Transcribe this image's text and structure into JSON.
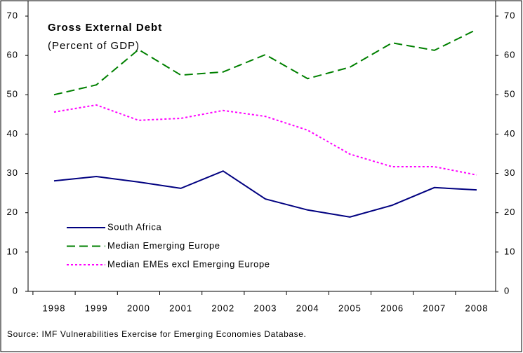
{
  "chart_data": {
    "type": "line",
    "title": "Gross External Debt",
    "subtitle": "(Percent of GDP)",
    "source": "Source: IMF Vulnerabilities Exercise for Emerging Economies Database.",
    "categories": [
      "1998",
      "1999",
      "2000",
      "2001",
      "2002",
      "2003",
      "2004",
      "2005",
      "2006",
      "2007",
      "2008"
    ],
    "series": [
      {
        "name": "South Africa",
        "color": "#000080",
        "dash": "solid",
        "values": [
          28.1,
          29.2,
          27.8,
          26.2,
          30.6,
          23.5,
          20.7,
          18.9,
          21.9,
          26.4,
          25.8
        ]
      },
      {
        "name": "Median Emerging Europe",
        "color": "#008000",
        "dash": "dashed",
        "values": [
          50.0,
          52.5,
          61.5,
          55.0,
          55.8,
          60.2,
          54.1,
          57.0,
          63.2,
          61.3,
          66.6
        ]
      },
      {
        "name": "Median EMEs excl Emerging Europe",
        "color": "#ff00ff",
        "dash": "dotted",
        "values": [
          45.6,
          47.4,
          43.5,
          44.0,
          46.0,
          44.5,
          41.0,
          34.9,
          31.7,
          31.7,
          29.6
        ]
      }
    ],
    "ylim": [
      0,
      70
    ],
    "yticks": [
      0,
      10,
      20,
      30,
      40,
      50,
      60,
      70
    ],
    "y2lim": [
      0,
      70
    ],
    "y2ticks": [
      0,
      10,
      20,
      30,
      40,
      50,
      60,
      70
    ],
    "grid": false
  }
}
